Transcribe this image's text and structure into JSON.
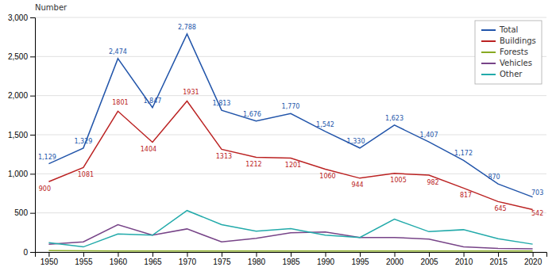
{
  "chart_data": {
    "type": "line",
    "y_label": "Number",
    "x": [
      1950,
      1955,
      1960,
      1965,
      1970,
      1975,
      1980,
      1985,
      1990,
      1995,
      2000,
      2005,
      2010,
      2015,
      2020
    ],
    "series": [
      {
        "name": "Total",
        "color": "#2255aa",
        "data_labels": true,
        "values": [
          1129,
          1329,
          2474,
          1847,
          2788,
          1813,
          1676,
          1770,
          1542,
          1330,
          1623,
          1407,
          1172,
          870,
          703
        ],
        "value_labels": [
          "1,129",
          "1,329",
          "2,474",
          "1,847",
          "2,788",
          "1,813",
          "1,676",
          "1,770",
          "1,542",
          "1,330",
          "1,623",
          "1,407",
          "1,172",
          "870",
          "703"
        ]
      },
      {
        "name": "Buildings",
        "color": "#bb2222",
        "data_labels": true,
        "values": [
          900,
          1081,
          1801,
          1404,
          1931,
          1313,
          1212,
          1201,
          1060,
          944,
          1005,
          982,
          817,
          645,
          542
        ]
      },
      {
        "name": "Forests",
        "color": "#88aa22",
        "values": [
          18,
          15,
          12,
          12,
          12,
          12,
          12,
          12,
          12,
          12,
          12,
          12,
          12,
          12,
          12
        ]
      },
      {
        "name": "Vehicles",
        "color": "#774488",
        "values": [
          100,
          130,
          350,
          215,
          295,
          130,
          175,
          245,
          255,
          185,
          185,
          165,
          65,
          45,
          40
        ]
      },
      {
        "name": "Other",
        "color": "#22aaaa",
        "values": [
          120,
          65,
          230,
          215,
          530,
          350,
          265,
          300,
          215,
          185,
          420,
          260,
          285,
          170,
          100
        ]
      }
    ],
    "xlim": [
      1948,
      2022
    ],
    "xticks": [
      1950,
      1955,
      1960,
      1965,
      1970,
      1975,
      1980,
      1985,
      1990,
      1995,
      2000,
      2005,
      2010,
      2015,
      2020
    ],
    "ylim": [
      0,
      3000
    ],
    "yticks": [
      0,
      500,
      {
        "value": 1000,
        "label": "1,000"
      },
      {
        "value": 1500,
        "label": "1,500"
      },
      {
        "value": 2000,
        "label": "2,000"
      },
      {
        "value": 2500,
        "label": "2,500"
      },
      {
        "value": 3000,
        "label": "3,000"
      }
    ],
    "grid": true,
    "legend": "upper right"
  }
}
